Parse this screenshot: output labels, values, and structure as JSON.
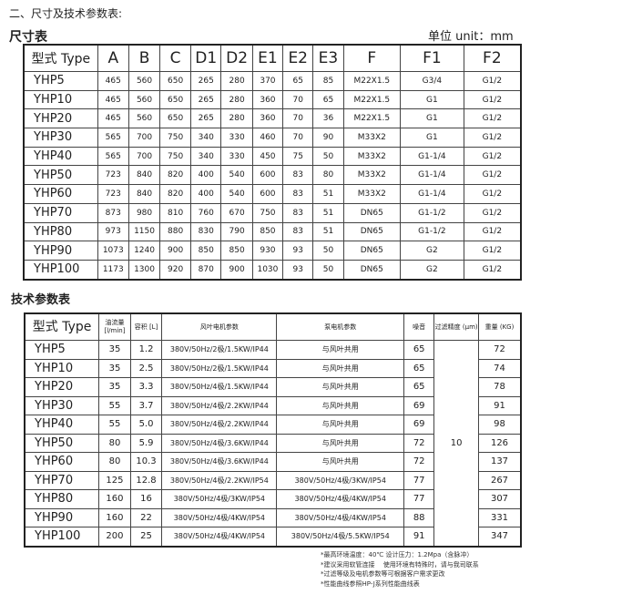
{
  "heading": "二、尺寸及技术参数表:",
  "dimensions": {
    "title": "尺寸表",
    "unit": "单位 unit：mm",
    "headers": [
      "型式 Type",
      "A",
      "B",
      "C",
      "D1",
      "D2",
      "E1",
      "E2",
      "E3",
      "F",
      "F1",
      "F2"
    ],
    "rows": [
      [
        "YHP5",
        "465",
        "560",
        "650",
        "265",
        "280",
        "370",
        "65",
        "85",
        "M22X1.5",
        "G3/4",
        "G1/2"
      ],
      [
        "YHP10",
        "465",
        "560",
        "650",
        "265",
        "280",
        "360",
        "70",
        "65",
        "M22X1.5",
        "G1",
        "G1/2"
      ],
      [
        "YHP20",
        "465",
        "560",
        "650",
        "265",
        "280",
        "360",
        "70",
        "36",
        "M22X1.5",
        "G1",
        "G1/2"
      ],
      [
        "YHP30",
        "565",
        "700",
        "750",
        "340",
        "330",
        "460",
        "70",
        "90",
        "M33X2",
        "G1",
        "G1/2"
      ],
      [
        "YHP40",
        "565",
        "700",
        "750",
        "340",
        "330",
        "450",
        "75",
        "50",
        "M33X2",
        "G1-1/4",
        "G1/2"
      ],
      [
        "YHP50",
        "723",
        "840",
        "820",
        "400",
        "540",
        "600",
        "83",
        "80",
        "M33X2",
        "G1-1/4",
        "G1/2"
      ],
      [
        "YHP60",
        "723",
        "840",
        "820",
        "400",
        "540",
        "600",
        "83",
        "51",
        "M33X2",
        "G1-1/4",
        "G1/2"
      ],
      [
        "YHP70",
        "873",
        "980",
        "810",
        "760",
        "670",
        "750",
        "83",
        "51",
        "DN65",
        "G1-1/2",
        "G1/2"
      ],
      [
        "YHP80",
        "973",
        "1150",
        "880",
        "830",
        "790",
        "850",
        "83",
        "51",
        "DN65",
        "G1-1/2",
        "G1/2"
      ],
      [
        "YHP90",
        "1073",
        "1240",
        "900",
        "850",
        "850",
        "930",
        "93",
        "50",
        "DN65",
        "G2",
        "G1/2"
      ],
      [
        "YHP100",
        "1173",
        "1300",
        "920",
        "870",
        "900",
        "1030",
        "93",
        "50",
        "DN65",
        "G2",
        "G1/2"
      ]
    ]
  },
  "technical": {
    "title": "技术参数表",
    "headers": [
      "型式 Type",
      "油流量 [l/min]",
      "容积 [L]",
      "风叶电机参数",
      "泵电机参数",
      "噪音",
      "过滤精度 (μm)",
      "重量 (KG)"
    ],
    "filter_value": "10",
    "rows": [
      [
        "YHP5",
        "35",
        "1.2",
        "380V/50Hz/2极/1.5KW/IP44",
        "与风叶共用",
        "65",
        "72"
      ],
      [
        "YHP10",
        "35",
        "2.5",
        "380V/50Hz/2极/1.5KW/IP44",
        "与风叶共用",
        "65",
        "74"
      ],
      [
        "YHP20",
        "35",
        "3.3",
        "380V/50Hz/4极/1.5KW/IP44",
        "与风叶共用",
        "65",
        "78"
      ],
      [
        "YHP30",
        "55",
        "3.7",
        "380V/50Hz/4极/2.2KW/IP44",
        "与风叶共用",
        "69",
        "91"
      ],
      [
        "YHP40",
        "55",
        "5.0",
        "380V/50Hz/4极/2.2KW/IP44",
        "与风叶共用",
        "69",
        "98"
      ],
      [
        "YHP50",
        "80",
        "5.9",
        "380V/50Hz/4极/3.6KW/IP44",
        "与风叶共用",
        "72",
        "126"
      ],
      [
        "YHP60",
        "80",
        "10.3",
        "380V/50Hz/4极/3.6KW/IP44",
        "与风叶共用",
        "72",
        "137"
      ],
      [
        "YHP70",
        "125",
        "12.8",
        "380V/50Hz/4极/2.2KW/IP54",
        "380V/50Hz/4极/3KW/IP54",
        "77",
        "267"
      ],
      [
        "YHP80",
        "160",
        "16",
        "380V/50Hz/4极/3KW/IP54",
        "380V/50Hz/4极/4KW/IP54",
        "77",
        "307"
      ],
      [
        "YHP90",
        "160",
        "22",
        "380V/50Hz/4极/4KW/IP54",
        "380V/50Hz/4极/4KW/IP54",
        "88",
        "331"
      ],
      [
        "YHP100",
        "200",
        "25",
        "380V/50Hz/4极/4KW/IP54",
        "380V/50Hz/4极/5.5KW/IP54",
        "91",
        "347"
      ]
    ]
  },
  "notes": [
    "*最高环境温度：40℃ 设计压力：1.2Mpa（含脉冲）",
    "*建议采用软管连接　 使用环境有特殊时，请与我司联系",
    "*过滤等级及电机参数等可根据客户需求更改",
    "*性能曲线参照HP-J系列性能曲线表"
  ]
}
